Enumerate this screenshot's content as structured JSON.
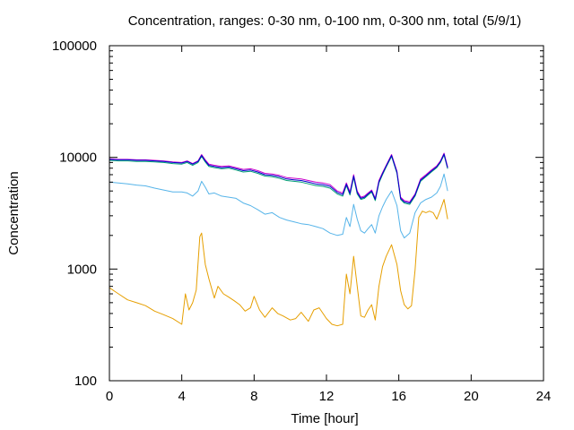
{
  "chart_data": {
    "type": "line",
    "title": "Concentration, ranges: 0-30 nm, 0-100 nm, 0-300 nm, total (5/9/1)",
    "xlabel": "Time [hour]",
    "ylabel": "Concentration",
    "xlim": [
      0,
      24
    ],
    "ylim": [
      100,
      100000
    ],
    "yscale": "log",
    "grid": false,
    "x_ticks": [
      0,
      4,
      8,
      12,
      16,
      20,
      24
    ],
    "x_tick_labels": [
      "0",
      "4",
      "8",
      "12",
      "16",
      "20",
      "24"
    ],
    "y_ticks": [
      100,
      1000,
      10000,
      100000
    ],
    "y_tick_labels": [
      "100",
      "1000",
      "10000",
      "100000"
    ],
    "series": [
      {
        "color": "#e69f00",
        "x": [
          0,
          0.5,
          1,
          1.5,
          2,
          2.5,
          3,
          3.5,
          4,
          4.2,
          4.4,
          4.6,
          4.8,
          5,
          5.1,
          5.2,
          5.3,
          5.5,
          5.8,
          6,
          6.3,
          6.6,
          6.9,
          7.2,
          7.5,
          7.8,
          8,
          8.3,
          8.6,
          9,
          9.3,
          9.6,
          10,
          10.3,
          10.6,
          11,
          11.3,
          11.6,
          12,
          12.3,
          12.6,
          12.9,
          13.1,
          13.3,
          13.5,
          13.7,
          13.9,
          14.1,
          14.3,
          14.5,
          14.7,
          14.9,
          15.1,
          15.3,
          15.6,
          15.9,
          16.1,
          16.3,
          16.5,
          16.7,
          16.9,
          17.1,
          17.3,
          17.5,
          17.7,
          17.9,
          18.1,
          18.3,
          18.5,
          18.7
        ],
        "y": [
          680,
          600,
          530,
          500,
          470,
          420,
          390,
          360,
          320,
          600,
          430,
          500,
          650,
          1950,
          2100,
          1500,
          1100,
          820,
          550,
          700,
          600,
          560,
          520,
          480,
          420,
          450,
          570,
          430,
          370,
          450,
          400,
          380,
          350,
          360,
          410,
          340,
          430,
          450,
          360,
          320,
          310,
          320,
          900,
          600,
          1300,
          700,
          380,
          370,
          430,
          480,
          350,
          700,
          1050,
          1300,
          1650,
          1100,
          640,
          480,
          440,
          470,
          980,
          2900,
          3300,
          3200,
          3300,
          3200,
          2800,
          3400,
          4200,
          2800
        ]
      },
      {
        "color": "#56b4e9",
        "x": [
          0,
          0.5,
          1,
          1.5,
          2,
          2.5,
          3,
          3.5,
          4,
          4.3,
          4.6,
          4.9,
          5.1,
          5.3,
          5.5,
          5.8,
          6.2,
          6.6,
          7,
          7.4,
          7.8,
          8.2,
          8.6,
          9,
          9.4,
          9.8,
          10.2,
          10.6,
          11,
          11.4,
          11.8,
          12.2,
          12.6,
          12.9,
          13.1,
          13.3,
          13.5,
          13.7,
          13.9,
          14.1,
          14.3,
          14.5,
          14.7,
          14.9,
          15.1,
          15.3,
          15.6,
          15.9,
          16.1,
          16.3,
          16.6,
          16.9,
          17.2,
          17.5,
          17.8,
          18.1,
          18.3,
          18.5,
          18.7
        ],
        "y": [
          6000,
          5900,
          5800,
          5650,
          5550,
          5300,
          5100,
          4900,
          4900,
          4800,
          4500,
          5000,
          6100,
          5400,
          4700,
          4800,
          4500,
          4400,
          4300,
          3900,
          3700,
          3400,
          3100,
          3200,
          2900,
          2750,
          2650,
          2550,
          2500,
          2400,
          2300,
          2100,
          2000,
          2050,
          2900,
          2400,
          3800,
          2800,
          2200,
          2100,
          2300,
          2500,
          2100,
          3000,
          3600,
          4200,
          5000,
          3700,
          2200,
          1900,
          2100,
          3200,
          3900,
          4200,
          4400,
          4800,
          5500,
          7100,
          5000
        ]
      },
      {
        "color": "#009e73",
        "x": [
          0,
          0.5,
          1,
          1.5,
          2,
          2.5,
          3,
          3.5,
          4,
          4.3,
          4.6,
          4.9,
          5.1,
          5.3,
          5.5,
          5.8,
          6.2,
          6.6,
          7,
          7.4,
          7.8,
          8.2,
          8.6,
          9,
          9.4,
          9.8,
          10.2,
          10.6,
          11,
          11.4,
          11.8,
          12.2,
          12.6,
          12.9,
          13.1,
          13.3,
          13.5,
          13.7,
          13.9,
          14.1,
          14.3,
          14.5,
          14.7,
          14.9,
          15.1,
          15.3,
          15.6,
          15.9,
          16.1,
          16.3,
          16.6,
          16.9,
          17.2,
          17.5,
          17.8,
          18.1,
          18.3,
          18.5,
          18.7
        ],
        "y": [
          9400,
          9300,
          9300,
          9200,
          9200,
          9100,
          9000,
          8800,
          8700,
          9000,
          8500,
          9000,
          10200,
          9100,
          8300,
          8100,
          7900,
          8000,
          7700,
          7400,
          7500,
          7200,
          6800,
          6700,
          6500,
          6200,
          6100,
          6000,
          5800,
          5600,
          5500,
          5300,
          4700,
          4500,
          5600,
          4600,
          6600,
          4700,
          4200,
          4300,
          4600,
          4900,
          4100,
          5900,
          7000,
          8200,
          10200,
          7200,
          4200,
          3900,
          3800,
          4500,
          6100,
          6700,
          7400,
          8100,
          9000,
          10500,
          7900
        ]
      },
      {
        "color": "#cc00cc",
        "x": [
          0,
          0.5,
          1,
          1.5,
          2,
          2.5,
          3,
          3.5,
          4,
          4.3,
          4.6,
          4.9,
          5.1,
          5.3,
          5.5,
          5.8,
          6.2,
          6.6,
          7,
          7.4,
          7.8,
          8.2,
          8.6,
          9,
          9.4,
          9.8,
          10.2,
          10.6,
          11,
          11.4,
          11.8,
          12.2,
          12.6,
          12.9,
          13.1,
          13.3,
          13.5,
          13.7,
          13.9,
          14.1,
          14.3,
          14.5,
          14.7,
          14.9,
          15.1,
          15.3,
          15.6,
          15.9,
          16.1,
          16.3,
          16.6,
          16.9,
          17.2,
          17.5,
          17.8,
          18.1,
          18.3,
          18.5,
          18.7
        ],
        "y": [
          9700,
          9600,
          9600,
          9500,
          9500,
          9400,
          9300,
          9100,
          9000,
          9300,
          8800,
          9300,
          10600,
          9500,
          8700,
          8500,
          8300,
          8400,
          8100,
          7800,
          7900,
          7600,
          7200,
          7100,
          6900,
          6600,
          6500,
          6400,
          6200,
          6000,
          5900,
          5700,
          5000,
          4800,
          5900,
          4900,
          7000,
          5000,
          4400,
          4500,
          4800,
          5100,
          4300,
          6200,
          7300,
          8500,
          10600,
          7500,
          4400,
          4100,
          4000,
          4700,
          6400,
          7000,
          7700,
          8400,
          9300,
          10900,
          8200
        ]
      },
      {
        "color": "#0000cc",
        "x": [
          0,
          0.5,
          1,
          1.5,
          2,
          2.5,
          3,
          3.5,
          4,
          4.3,
          4.6,
          4.9,
          5.1,
          5.3,
          5.5,
          5.8,
          6.2,
          6.6,
          7,
          7.4,
          7.8,
          8.2,
          8.6,
          9,
          9.4,
          9.8,
          10.2,
          10.6,
          11,
          11.4,
          11.8,
          12.2,
          12.6,
          12.9,
          13.1,
          13.3,
          13.5,
          13.7,
          13.9,
          14.1,
          14.3,
          14.5,
          14.7,
          14.9,
          15.1,
          15.3,
          15.6,
          15.9,
          16.1,
          16.3,
          16.6,
          16.9,
          17.2,
          17.5,
          17.8,
          18.1,
          18.3,
          18.5,
          18.7
        ],
        "y": [
          9600,
          9500,
          9500,
          9400,
          9400,
          9300,
          9200,
          9000,
          8900,
          9200,
          8700,
          9200,
          10400,
          9300,
          8500,
          8300,
          8100,
          8200,
          7900,
          7600,
          7700,
          7400,
          7000,
          6900,
          6700,
          6400,
          6300,
          6200,
          6000,
          5800,
          5700,
          5500,
          4850,
          4650,
          5750,
          4750,
          6800,
          4850,
          4300,
          4400,
          4700,
          5000,
          4200,
          6050,
          7150,
          8350,
          10400,
          7350,
          4300,
          4000,
          3900,
          4600,
          6250,
          6850,
          7550,
          8250,
          9150,
          10700,
          8050
        ]
      }
    ]
  }
}
